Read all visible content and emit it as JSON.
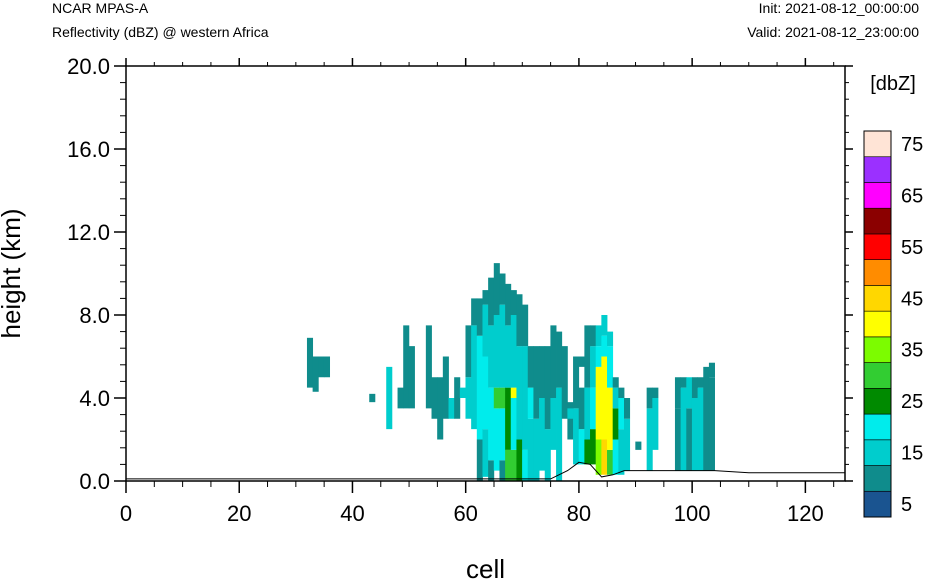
{
  "header": {
    "model": "NCAR MPAS-A",
    "field": "Reflectivity (dBZ) @ western Africa",
    "init": "Init: 2021-08-12_00:00:00",
    "valid": "Valid: 2021-08-12_23:00:00"
  },
  "chart_data": {
    "type": "heatmap",
    "title": "Reflectivity (dBZ) @ western Africa",
    "xlabel": "cell",
    "ylabel": "height (km)",
    "xlim": [
      0,
      127
    ],
    "ylim": [
      0,
      20
    ],
    "x_ticks": [
      "0",
      "20",
      "40",
      "60",
      "80",
      "100",
      "120"
    ],
    "y_ticks": [
      "0.0",
      "4.0",
      "8.0",
      "12.0",
      "16.0",
      "20.0"
    ],
    "grid": false,
    "colorbar": {
      "title": "[dbZ]",
      "labels": [
        "5",
        "15",
        "25",
        "35",
        "45",
        "55",
        "65",
        "75"
      ],
      "levels": [
        5,
        10,
        15,
        20,
        25,
        30,
        35,
        40,
        45,
        50,
        55,
        60,
        65,
        70,
        75
      ],
      "colors": [
        "#1a5490",
        "#0f8c8c",
        "#00cdcd",
        "#00ecec",
        "#008a00",
        "#32cd32",
        "#7cfc00",
        "#ffff00",
        "#ffd700",
        "#ff8c00",
        "#ff0000",
        "#8b0000",
        "#ff00ff",
        "#9b30ff",
        "#ffe4d6"
      ]
    },
    "terrain_km": [
      [
        0,
        0.1
      ],
      [
        75,
        0.1
      ],
      [
        78,
        0.5
      ],
      [
        80,
        0.9
      ],
      [
        82,
        0.8
      ],
      [
        84,
        0.2
      ],
      [
        86,
        0.3
      ],
      [
        88,
        0.5
      ],
      [
        92,
        0.5
      ],
      [
        104,
        0.5
      ],
      [
        110,
        0.4
      ],
      [
        127,
        0.4
      ]
    ],
    "columns": [
      {
        "x": 32,
        "bins": [
          [
            4.5,
            6.9,
            10
          ]
        ]
      },
      {
        "x": 33,
        "bins": [
          [
            4.3,
            6.0,
            10
          ]
        ]
      },
      {
        "x": 34,
        "bins": [
          [
            5.0,
            6.0,
            10
          ]
        ]
      },
      {
        "x": 35,
        "bins": [
          [
            5.0,
            6.0,
            10
          ]
        ]
      },
      {
        "x": 43,
        "bins": [
          [
            3.8,
            4.2,
            10
          ]
        ]
      },
      {
        "x": 46,
        "bins": [
          [
            2.5,
            5.5,
            15
          ]
        ]
      },
      {
        "x": 48,
        "bins": [
          [
            3.5,
            4.5,
            10
          ]
        ]
      },
      {
        "x": 49,
        "bins": [
          [
            3.5,
            7.5,
            10
          ]
        ]
      },
      {
        "x": 50,
        "bins": [
          [
            3.5,
            6.5,
            10
          ]
        ]
      },
      {
        "x": 53,
        "bins": [
          [
            3.5,
            7.5,
            10
          ]
        ]
      },
      {
        "x": 54,
        "bins": [
          [
            3.0,
            5.0,
            10
          ]
        ]
      },
      {
        "x": 55,
        "bins": [
          [
            2.0,
            5.0,
            10
          ]
        ]
      },
      {
        "x": 56,
        "bins": [
          [
            3.0,
            6.0,
            10
          ]
        ]
      },
      {
        "x": 57,
        "bins": [
          [
            3.0,
            4.0,
            15
          ]
        ]
      },
      {
        "x": 58,
        "bins": [
          [
            3.0,
            5.0,
            10
          ]
        ]
      },
      {
        "x": 59,
        "bins": [
          [
            4.0,
            4.5,
            15
          ]
        ]
      },
      {
        "x": 60,
        "bins": [
          [
            3.0,
            5.0,
            15
          ],
          [
            5.0,
            7.5,
            10
          ]
        ]
      },
      {
        "x": 61,
        "bins": [
          [
            2.5,
            7.5,
            15
          ],
          [
            7.5,
            8.8,
            10
          ]
        ]
      },
      {
        "x": 62,
        "bins": [
          [
            0.0,
            2.0,
            10
          ],
          [
            2.0,
            7.0,
            20
          ],
          [
            7.0,
            8.8,
            10
          ]
        ]
      },
      {
        "x": 63,
        "bins": [
          [
            0.2,
            2.5,
            15
          ],
          [
            2.5,
            6.0,
            20
          ],
          [
            6.0,
            8.5,
            15
          ],
          [
            8.5,
            9.2,
            10
          ]
        ]
      },
      {
        "x": 64,
        "bins": [
          [
            0.0,
            1.0,
            10
          ],
          [
            1.0,
            4.0,
            20
          ],
          [
            4.0,
            4.5,
            20
          ],
          [
            4.5,
            7.5,
            15
          ],
          [
            7.5,
            9.8,
            10
          ]
        ]
      },
      {
        "x": 65,
        "bins": [
          [
            0.5,
            3.5,
            20
          ],
          [
            3.5,
            4.5,
            30
          ],
          [
            4.5,
            8.0,
            15
          ],
          [
            8.0,
            10.5,
            10
          ]
        ]
      },
      {
        "x": 66,
        "bins": [
          [
            0.0,
            1.0,
            10
          ],
          [
            1.0,
            3.5,
            20
          ],
          [
            3.5,
            4.5,
            30
          ],
          [
            4.5,
            8.5,
            15
          ],
          [
            8.5,
            10.0,
            10
          ]
        ]
      },
      {
        "x": 67,
        "bins": [
          [
            0.0,
            1.5,
            30
          ],
          [
            1.5,
            4.5,
            25
          ],
          [
            4.5,
            7.5,
            15
          ],
          [
            7.5,
            9.5,
            10
          ]
        ]
      },
      {
        "x": 68,
        "bins": [
          [
            0.0,
            1.5,
            30
          ],
          [
            1.5,
            4.0,
            20
          ],
          [
            4.0,
            4.5,
            40
          ],
          [
            4.5,
            8.0,
            15
          ],
          [
            8.0,
            9.2,
            10
          ]
        ]
      },
      {
        "x": 69,
        "bins": [
          [
            0.0,
            2.0,
            25
          ],
          [
            2.0,
            6.5,
            15
          ],
          [
            6.5,
            9.0,
            10
          ]
        ]
      },
      {
        "x": 70,
        "bins": [
          [
            0.0,
            1.5,
            20
          ],
          [
            1.5,
            6.5,
            15
          ],
          [
            6.5,
            8.5,
            10
          ]
        ]
      },
      {
        "x": 71,
        "bins": [
          [
            0.0,
            3.0,
            15
          ],
          [
            3.0,
            4.5,
            20
          ],
          [
            4.5,
            6.5,
            10
          ]
        ]
      },
      {
        "x": 72,
        "bins": [
          [
            0.0,
            3.0,
            15
          ],
          [
            3.0,
            6.5,
            10
          ]
        ]
      },
      {
        "x": 73,
        "bins": [
          [
            0.5,
            4.0,
            15
          ],
          [
            4.0,
            6.5,
            10
          ]
        ]
      },
      {
        "x": 74,
        "bins": [
          [
            0.0,
            2.5,
            15
          ],
          [
            2.5,
            6.5,
            10
          ]
        ]
      },
      {
        "x": 75,
        "bins": [
          [
            1.5,
            4.0,
            15
          ],
          [
            4.0,
            7.5,
            10
          ]
        ]
      },
      {
        "x": 76,
        "bins": [
          [
            0.0,
            4.5,
            15
          ],
          [
            4.5,
            7.2,
            10
          ]
        ]
      },
      {
        "x": 77,
        "bins": [
          [
            3.0,
            6.5,
            10
          ]
        ]
      },
      {
        "x": 78,
        "bins": [
          [
            2.0,
            3.8,
            10
          ],
          [
            3.0,
            3.5,
            15
          ]
        ]
      },
      {
        "x": 79,
        "bins": [
          [
            0.8,
            3.5,
            15
          ],
          [
            3.5,
            6.0,
            10
          ]
        ]
      },
      {
        "x": 80,
        "bins": [
          [
            0.8,
            2.5,
            20
          ],
          [
            2.5,
            4.5,
            10
          ],
          [
            5.5,
            6.0,
            10
          ]
        ]
      },
      {
        "x": 81,
        "bins": [
          [
            0.8,
            2.0,
            25
          ],
          [
            2.0,
            4.5,
            15
          ],
          [
            4.5,
            7.5,
            10
          ]
        ]
      },
      {
        "x": 82,
        "bins": [
          [
            0.8,
            2.5,
            25
          ],
          [
            2.5,
            4.5,
            20
          ],
          [
            4.5,
            6.5,
            15
          ],
          [
            6.5,
            7.5,
            10
          ]
        ]
      },
      {
        "x": 83,
        "bins": [
          [
            0.3,
            2.0,
            35
          ],
          [
            2.0,
            5.5,
            40
          ],
          [
            5.5,
            6.5,
            20
          ],
          [
            6.5,
            7.5,
            15
          ]
        ]
      },
      {
        "x": 84,
        "bins": [
          [
            0.3,
            2.0,
            45
          ],
          [
            2.0,
            6.0,
            40
          ],
          [
            6.0,
            7.0,
            20
          ],
          [
            7.0,
            8.0,
            15
          ]
        ]
      },
      {
        "x": 85,
        "bins": [
          [
            0.3,
            1.5,
            30
          ],
          [
            1.5,
            4.5,
            40
          ],
          [
            4.5,
            6.5,
            20
          ],
          [
            6.5,
            7.2,
            15
          ]
        ]
      },
      {
        "x": 86,
        "bins": [
          [
            0.3,
            2.0,
            20
          ],
          [
            2.0,
            3.5,
            25
          ],
          [
            3.5,
            4.5,
            15
          ],
          [
            4.5,
            5.0,
            10
          ]
        ]
      },
      {
        "x": 87,
        "bins": [
          [
            0.3,
            2.5,
            15
          ],
          [
            2.5,
            4.0,
            20
          ],
          [
            4.0,
            4.5,
            10
          ]
        ]
      },
      {
        "x": 88,
        "bins": [
          [
            0.5,
            3.0,
            15
          ],
          [
            3.0,
            4.0,
            10
          ]
        ]
      },
      {
        "x": 90,
        "bins": [
          [
            1.5,
            1.9,
            10
          ]
        ]
      },
      {
        "x": 92,
        "bins": [
          [
            0.5,
            3.5,
            15
          ],
          [
            3.5,
            4.5,
            10
          ]
        ]
      },
      {
        "x": 93,
        "bins": [
          [
            1.5,
            4.0,
            15
          ],
          [
            4.0,
            4.5,
            10
          ]
        ]
      },
      {
        "x": 97,
        "bins": [
          [
            0.5,
            3.5,
            10
          ],
          [
            3.5,
            5.0,
            10
          ]
        ]
      },
      {
        "x": 98,
        "bins": [
          [
            0.5,
            4.5,
            15
          ],
          [
            4.5,
            5.0,
            10
          ]
        ]
      },
      {
        "x": 99,
        "bins": [
          [
            0.5,
            3.5,
            10
          ],
          [
            3.5,
            5.0,
            15
          ]
        ]
      },
      {
        "x": 100,
        "bins": [
          [
            0.5,
            4.0,
            15
          ],
          [
            4.0,
            5.0,
            10
          ]
        ]
      },
      {
        "x": 101,
        "bins": [
          [
            0.5,
            4.5,
            15
          ],
          [
            4.5,
            5.0,
            10
          ]
        ]
      },
      {
        "x": 102,
        "bins": [
          [
            0.5,
            4.0,
            10
          ],
          [
            4.0,
            5.5,
            10
          ]
        ]
      },
      {
        "x": 103,
        "bins": [
          [
            0.5,
            5.0,
            10
          ],
          [
            5.0,
            5.7,
            10
          ]
        ]
      }
    ]
  }
}
